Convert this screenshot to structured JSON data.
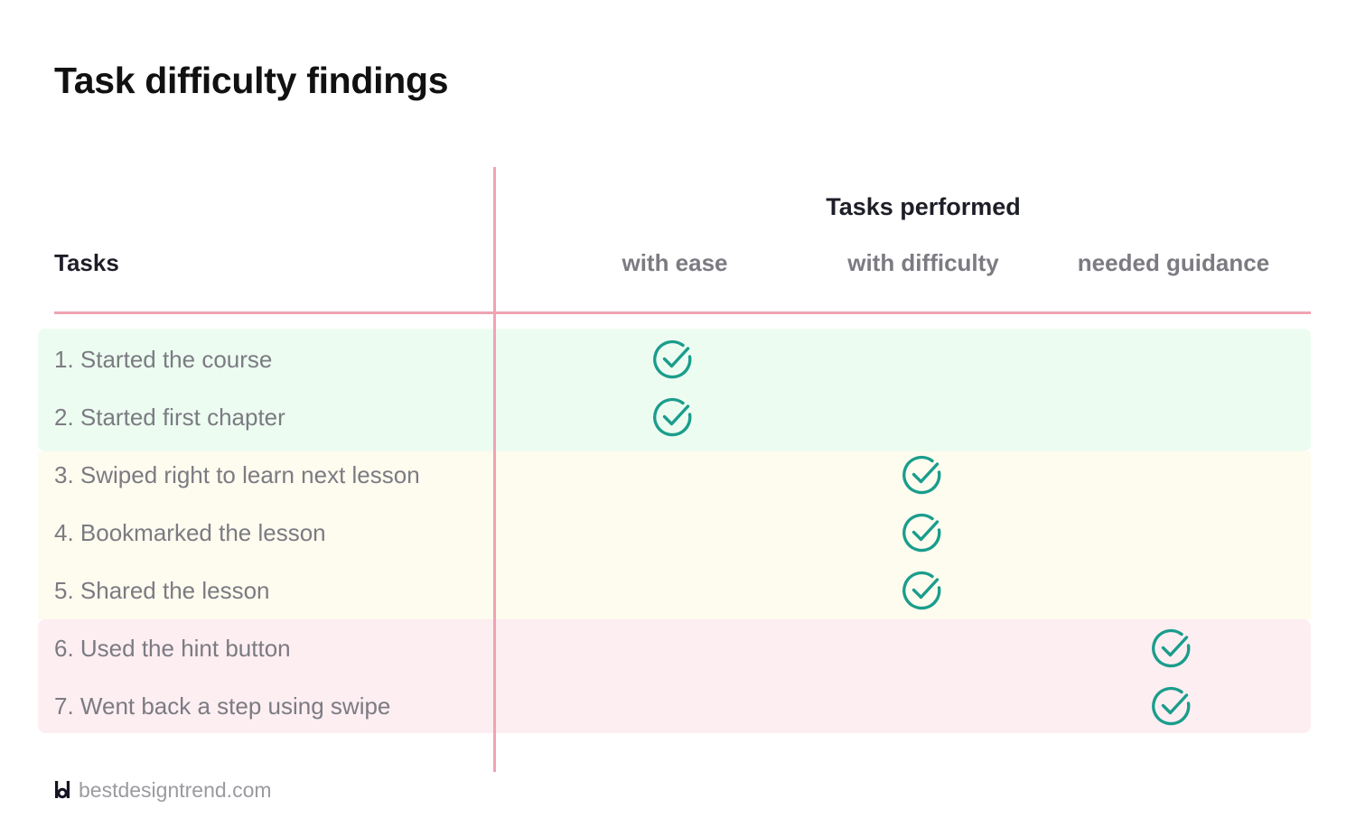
{
  "title": "Task difficulty findings",
  "table": {
    "group_header": "Tasks performed",
    "tasks_header": "Tasks",
    "columns": [
      "with ease",
      "with difficulty",
      "needed guidance"
    ],
    "rows": [
      {
        "label": "1. Started the course",
        "result": "with ease"
      },
      {
        "label": "2. Started first chapter",
        "result": "with ease"
      },
      {
        "label": "3. Swiped right to learn next lesson",
        "result": "with difficulty"
      },
      {
        "label": "4. Bookmarked the lesson",
        "result": "with difficulty"
      },
      {
        "label": "5. Shared the lesson",
        "result": "with difficulty"
      },
      {
        "label": "6. Used the hint button",
        "result": "needed guidance"
      },
      {
        "label": "7. Went back a step using swipe",
        "result": "needed guidance"
      }
    ]
  },
  "footer": {
    "logo_icon": "bd-logo-icon",
    "site": "bestdesigntrend.com"
  },
  "colors": {
    "divider": "#f0a3b3",
    "check": "#1a9d8c",
    "band_ease": "#edfcf1",
    "band_difficulty": "#fefbef",
    "band_guidance": "#fdeef1"
  },
  "icons": {
    "check": "check-circle-icon"
  }
}
